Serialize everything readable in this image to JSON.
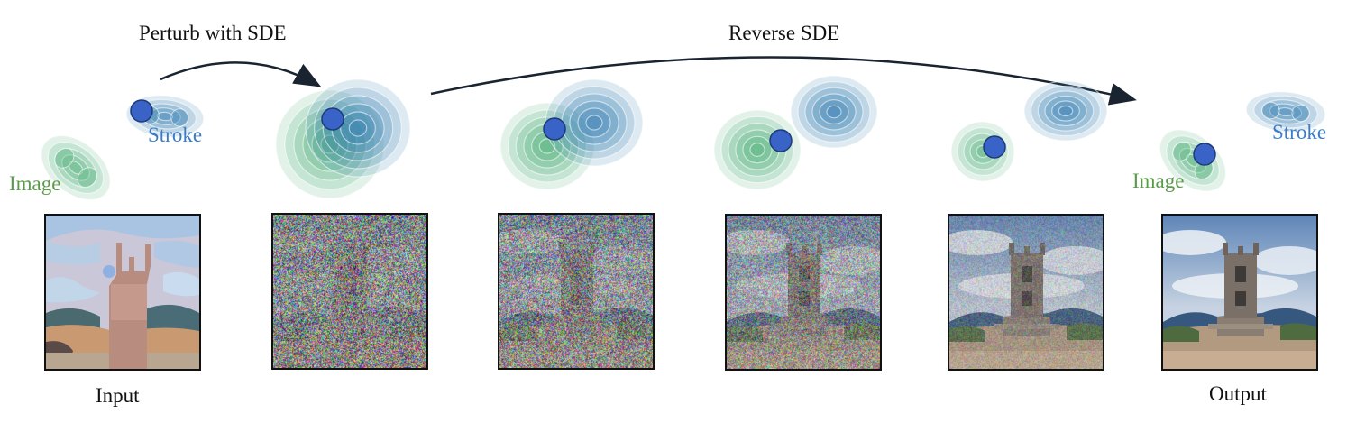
{
  "header": {
    "perturb_label": "Perturb with SDE",
    "reverse_label": "Reverse SDE"
  },
  "distribution_labels": {
    "image": "Image",
    "stroke": "Stroke"
  },
  "panels": [
    {
      "id": "input",
      "caption": "Input",
      "noise_level": 0.0
    },
    {
      "id": "step1",
      "caption": "",
      "noise_level": 0.97
    },
    {
      "id": "step2",
      "caption": "",
      "noise_level": 0.85
    },
    {
      "id": "step3",
      "caption": "",
      "noise_level": 0.65
    },
    {
      "id": "step4",
      "caption": "",
      "noise_level": 0.3
    },
    {
      "id": "output",
      "caption": "Output",
      "noise_level": 0.0
    }
  ],
  "colors": {
    "image_dist": "#4caf78",
    "stroke_dist": "#2f7ab0",
    "image_label": "#5b9a4a",
    "stroke_label": "#3b7cc4",
    "sample_dot": "#3a63c8",
    "arrow": "#1a2430"
  }
}
